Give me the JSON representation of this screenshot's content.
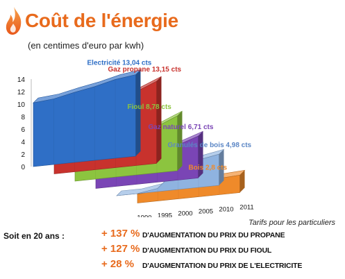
{
  "title": "Coût de l'énergie",
  "subtitle": "(en centimes d'euro par kwh)",
  "source_note": "Tarifs pour les particuliers",
  "summary": {
    "lead": "Soit en 20 ans :",
    "items": [
      {
        "pct": "+ 137 %",
        "text": "D'AUGMENTATION DU PRIX DU PROPANE"
      },
      {
        "pct": "+ 127 %",
        "text": "D'AUGMENTATION DU PRIX DU FIOUL"
      },
      {
        "pct": "+ 28 %",
        "text": "D'AUGMENTATION DU PRIX DE L'ELECTRICITE"
      }
    ]
  },
  "chart_data": {
    "type": "area",
    "title": "Coût de l'énergie",
    "subtitle": "(en centimes d'euro par kwh)",
    "xlabel": "",
    "ylabel": "",
    "ylim": [
      0,
      14
    ],
    "yticks": [
      "0",
      "2",
      "4",
      "6",
      "8",
      "10",
      "12",
      "14"
    ],
    "x": [
      "1990",
      "1995",
      "2000",
      "2005",
      "2010",
      "2011"
    ],
    "grid": false,
    "series": [
      {
        "name": "Electricité 13,04 cts",
        "color": "#2f6fc6",
        "values": [
          10.2,
          10.5,
          11.2,
          11.8,
          12.6,
          13.04
        ]
      },
      {
        "name": "Gaz propane 13,15 cts",
        "color": "#c8322d",
        "values": [
          5.5,
          6.6,
          7.7,
          9.8,
          11.8,
          13.15
        ]
      },
      {
        "name": "Fioul 8,78 cts",
        "color": "#8cc43f",
        "values": [
          3.9,
          3.8,
          4.3,
          6.3,
          7.4,
          8.78
        ]
      },
      {
        "name": "Gaz naturel 6,71 cts",
        "color": "#7a45b5",
        "values": [
          3.7,
          3.6,
          3.7,
          4.9,
          5.6,
          6.71
        ]
      },
      {
        "name": "Granulés de bois 4,98 cts",
        "color": "#8fb3e0",
        "values": [
          0,
          0,
          0.5,
          3.4,
          4.4,
          4.98
        ]
      },
      {
        "name": "Bois 2,8 cts",
        "color": "#ef8a2a",
        "values": [
          1.4,
          1.7,
          2.0,
          2.3,
          2.6,
          2.8
        ]
      }
    ]
  }
}
